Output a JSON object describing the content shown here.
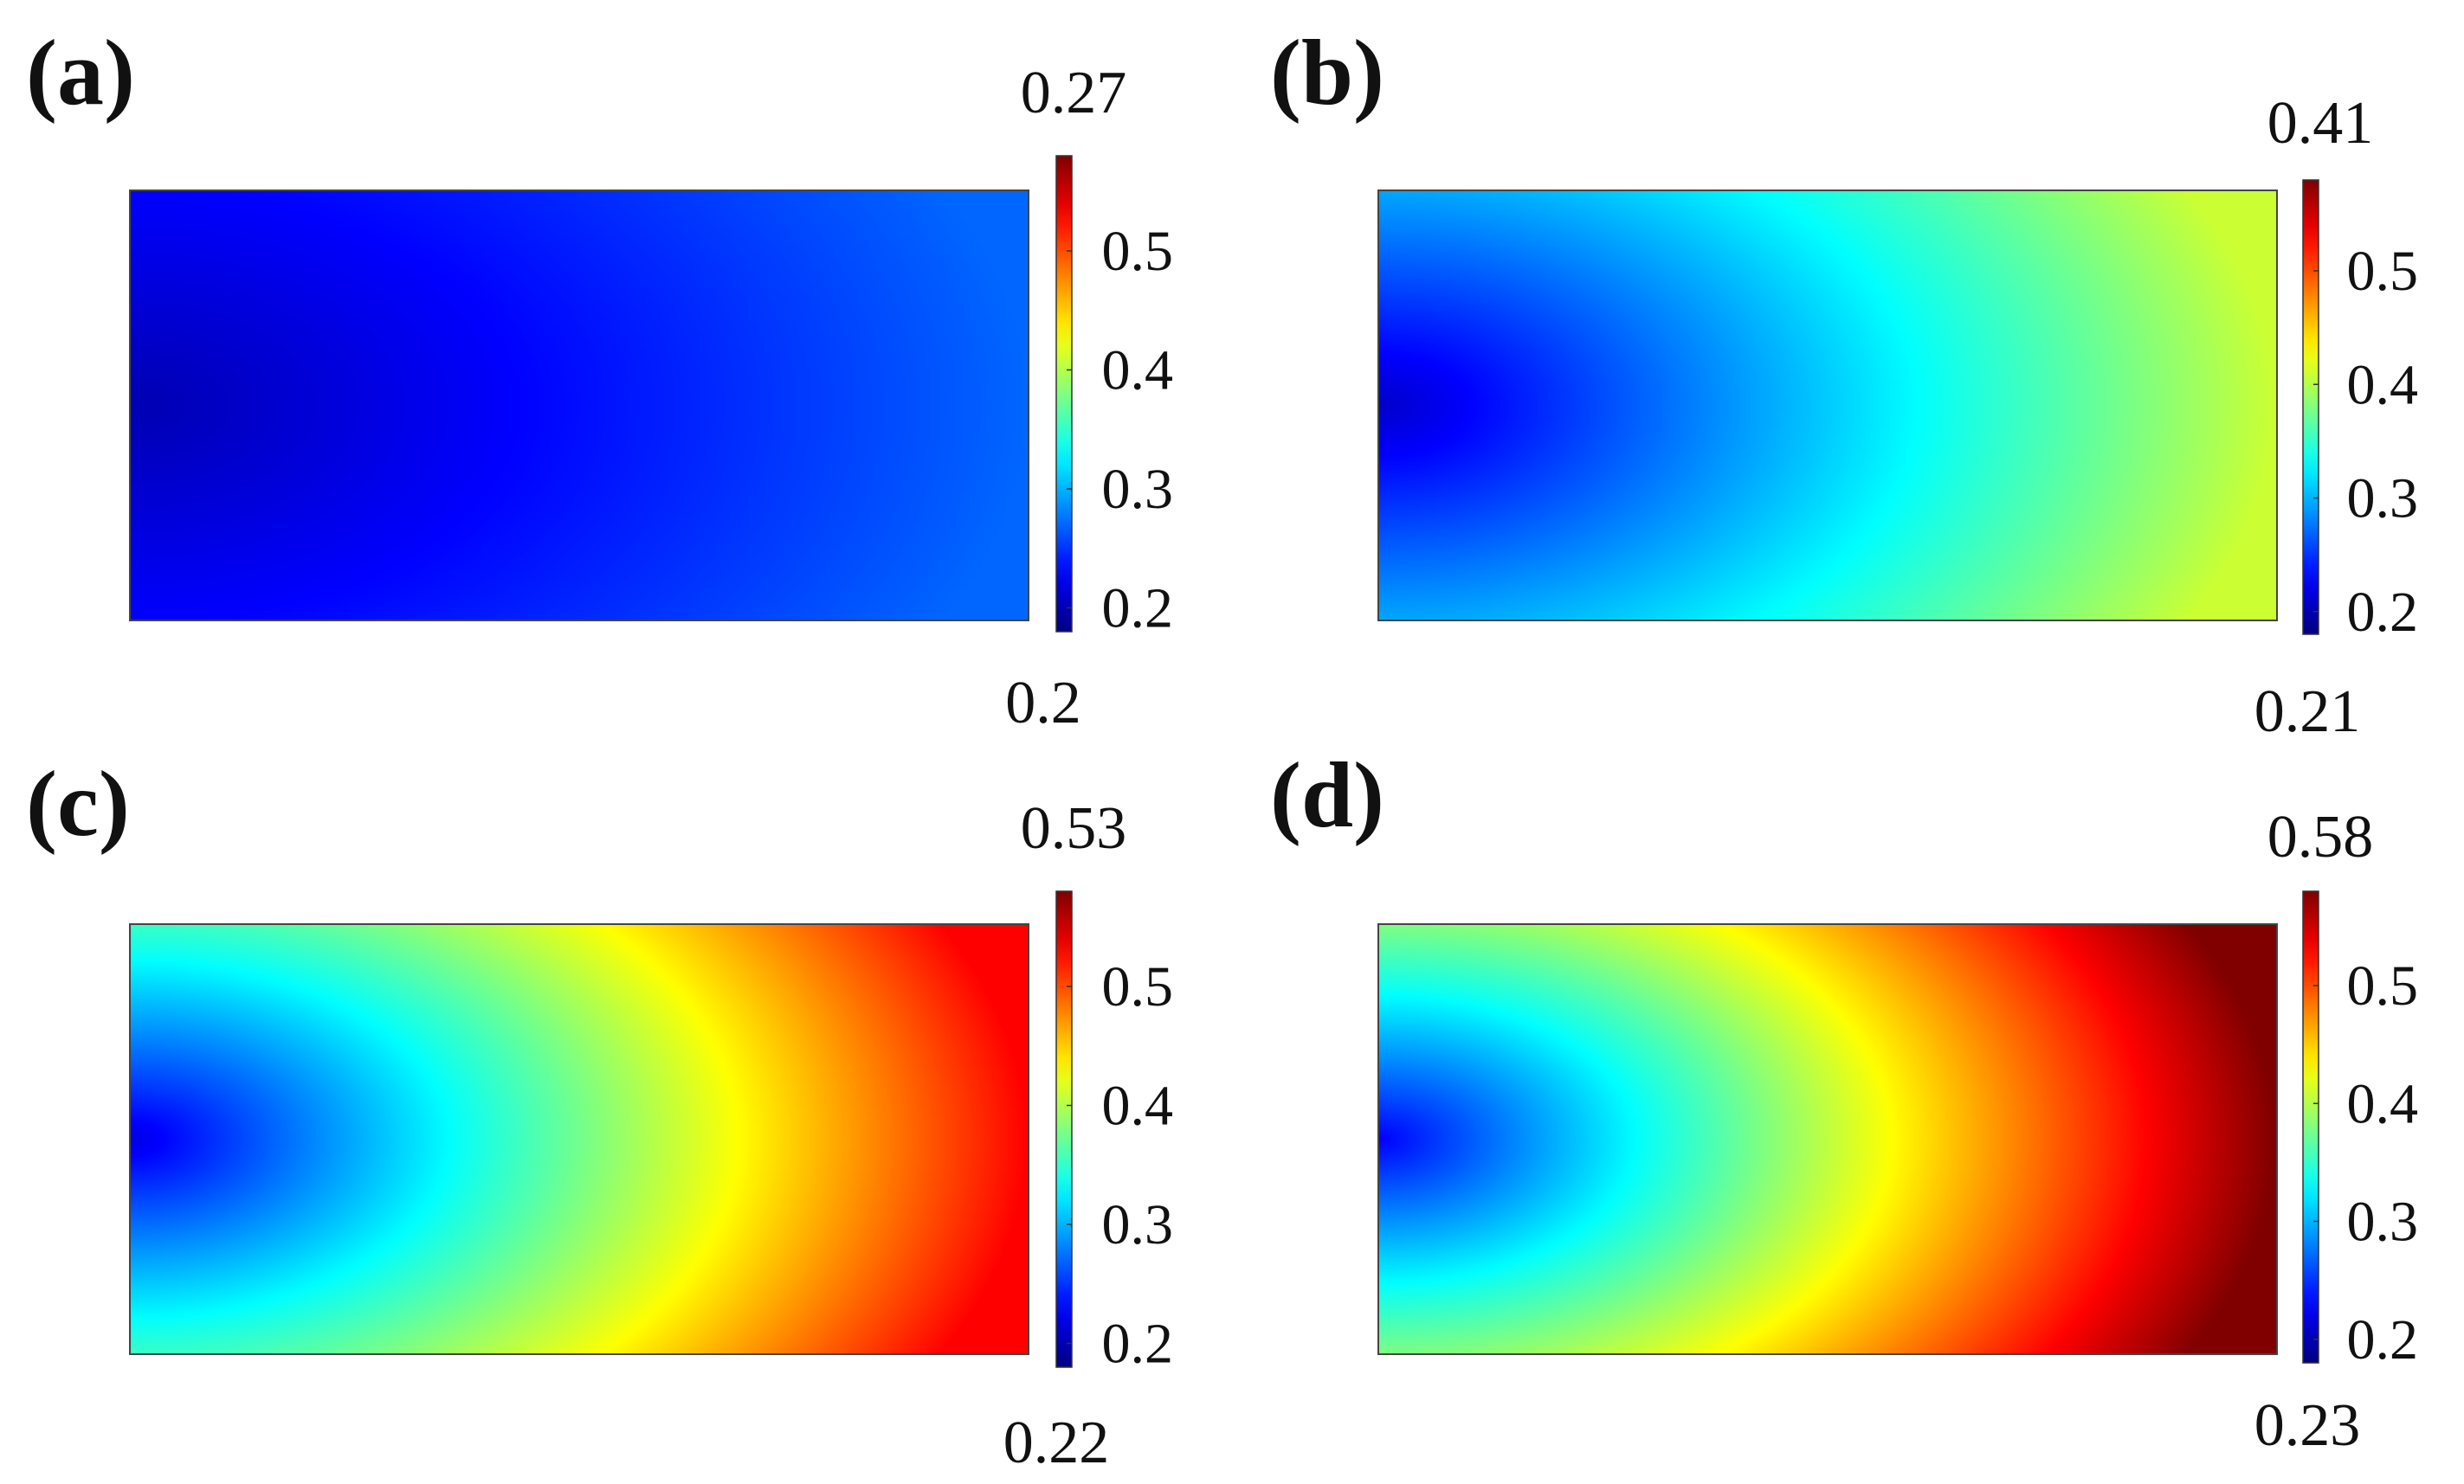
{
  "chart_data": [
    {
      "type": "heatmap",
      "panel_label": "(a)",
      "min_label": "0.2",
      "max_label": "0.27",
      "range": [
        0.2,
        0.27
      ],
      "colorbar": {
        "colormap": "jet",
        "ticks": [
          "0.2",
          "0.3",
          "0.4",
          "0.5"
        ],
        "tick_values": [
          0.2,
          0.3,
          0.4,
          0.5
        ],
        "limits": [
          0.18,
          0.58
        ]
      }
    },
    {
      "type": "heatmap",
      "panel_label": "(b)",
      "min_label": "0.21",
      "max_label": "0.41",
      "range": [
        0.21,
        0.41
      ],
      "colorbar": {
        "colormap": "jet",
        "ticks": [
          "0.2",
          "0.3",
          "0.4",
          "0.5"
        ],
        "tick_values": [
          0.2,
          0.3,
          0.4,
          0.5
        ],
        "limits": [
          0.18,
          0.58
        ]
      }
    },
    {
      "type": "heatmap",
      "panel_label": "(c)",
      "min_label": "0.22",
      "max_label": "0.53",
      "range": [
        0.22,
        0.53
      ],
      "colorbar": {
        "colormap": "jet",
        "ticks": [
          "0.2",
          "0.3",
          "0.4",
          "0.5"
        ],
        "tick_values": [
          0.2,
          0.3,
          0.4,
          0.5
        ],
        "limits": [
          0.18,
          0.58
        ]
      }
    },
    {
      "type": "heatmap",
      "panel_label": "(d)",
      "min_label": "0.23",
      "max_label": "0.58",
      "range": [
        0.23,
        0.58
      ],
      "colorbar": {
        "colormap": "jet",
        "ticks": [
          "0.2",
          "0.3",
          "0.4",
          "0.5"
        ],
        "tick_values": [
          0.2,
          0.3,
          0.4,
          0.5
        ],
        "limits": [
          0.18,
          0.58
        ]
      }
    }
  ]
}
